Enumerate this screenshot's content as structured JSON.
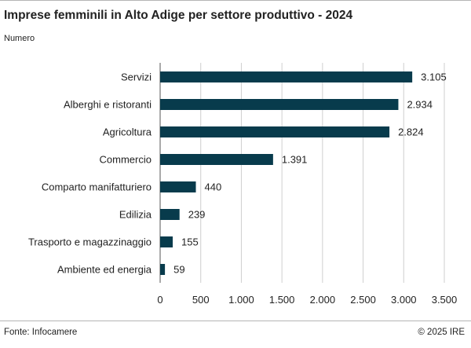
{
  "header": {
    "title": "Imprese femminili in Alto Adige per settore produttivo - 2024",
    "subtitle": "Numero"
  },
  "footer": {
    "source": "Fonte: Infocamere",
    "copyright": "© 2025 IRE"
  },
  "chart_data": {
    "type": "bar",
    "orientation": "horizontal",
    "title": "Imprese femminili in Alto Adige per settore produttivo - 2024",
    "ylabel": "Numero",
    "categories": [
      "Servizi",
      "Alberghi e ristoranti",
      "Agricoltura",
      "Commercio",
      "Comparto manifatturiero",
      "Edilizia",
      "Trasporto e magazzinaggio",
      "Ambiente ed energia"
    ],
    "values": [
      3105,
      2934,
      2824,
      1391,
      440,
      239,
      155,
      59
    ],
    "value_labels": [
      "3.105",
      "2.934",
      "2.824",
      "1.391",
      "440",
      "239",
      "155",
      "59"
    ],
    "xlim": [
      0,
      3500
    ],
    "xticks": [
      0,
      500,
      1000,
      1500,
      2000,
      2500,
      3000,
      3500
    ],
    "xtick_labels": [
      "0",
      "500",
      "1.000",
      "1.500",
      "2.000",
      "2.500",
      "3.000",
      "3.500"
    ],
    "grid": true,
    "bar_color": "#083b4c",
    "grid_color": "#cfcfcf"
  }
}
